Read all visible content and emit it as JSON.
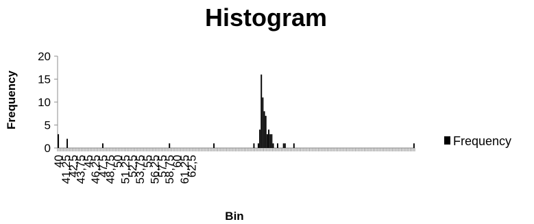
{
  "chart_data": {
    "type": "bar",
    "title": "Histogram",
    "xlabel": "Bin",
    "ylabel": "Frequency",
    "ylim": [
      0,
      20
    ],
    "yticks": [
      "0",
      "5",
      "10",
      "15",
      "20"
    ],
    "bins_start": 40,
    "bins_step": 0.25,
    "tick_labels": [
      "40",
      "41,25",
      "42,5",
      "43,75",
      "45",
      "46,25",
      "47,5",
      "48,75",
      "50",
      "51,25",
      "52,5",
      "53,75",
      "55",
      "56,25",
      "57,5",
      "58,75",
      "60",
      "61,25",
      "62,5"
    ],
    "series": [
      {
        "name": "Frequency",
        "color": "#000000",
        "values": [
          3,
          0,
          0,
          0,
          0,
          0,
          2,
          0,
          0,
          0,
          0,
          0,
          0,
          0,
          0,
          0,
          0,
          0,
          0,
          0,
          0,
          0,
          0,
          0,
          0,
          0,
          0,
          0,
          0,
          0,
          1,
          0,
          0,
          0,
          0,
          0,
          0,
          0,
          0,
          0,
          0,
          0,
          0,
          0,
          0,
          0,
          0,
          0,
          0,
          0,
          0,
          0,
          0,
          0,
          0,
          0,
          0,
          0,
          0,
          0,
          0,
          0,
          0,
          0,
          0,
          0,
          0,
          0,
          0,
          0,
          0,
          0,
          0,
          0,
          0,
          1,
          0,
          0,
          0,
          0,
          0,
          0,
          0,
          0,
          0,
          0,
          0,
          0,
          0,
          0,
          0,
          0,
          0,
          0,
          0,
          0,
          0,
          0,
          0,
          0,
          0,
          0,
          0,
          0,
          0,
          1,
          0,
          0,
          0,
          0,
          0,
          0,
          0,
          0,
          0,
          0,
          0,
          0,
          0,
          0,
          0,
          0,
          0,
          0,
          0,
          0,
          0,
          0,
          0,
          0,
          0,
          0,
          1,
          0,
          0,
          1,
          4,
          16,
          11,
          8,
          7,
          3,
          4,
          3,
          3,
          1,
          0,
          0,
          1,
          0,
          0,
          0,
          1,
          1,
          0,
          0,
          0,
          0,
          0,
          1,
          0,
          0,
          0,
          0,
          0,
          0,
          0,
          0,
          0,
          0,
          0,
          0,
          0,
          0,
          0,
          0,
          0,
          0,
          0,
          0,
          0,
          0,
          0,
          0,
          0,
          0,
          0,
          0,
          0,
          0,
          0,
          0,
          0,
          0,
          0,
          0,
          0,
          0,
          0,
          0,
          0,
          0,
          0,
          0,
          0,
          0,
          0,
          0,
          0,
          0,
          0,
          0,
          0,
          0,
          0,
          0,
          0,
          0,
          0,
          0,
          0,
          0,
          0,
          0,
          0,
          0,
          0,
          0,
          0,
          0,
          0,
          0,
          0,
          0,
          0,
          0,
          0,
          0,
          0,
          0,
          1
        ]
      }
    ],
    "grid": false,
    "legend_position": "right"
  }
}
